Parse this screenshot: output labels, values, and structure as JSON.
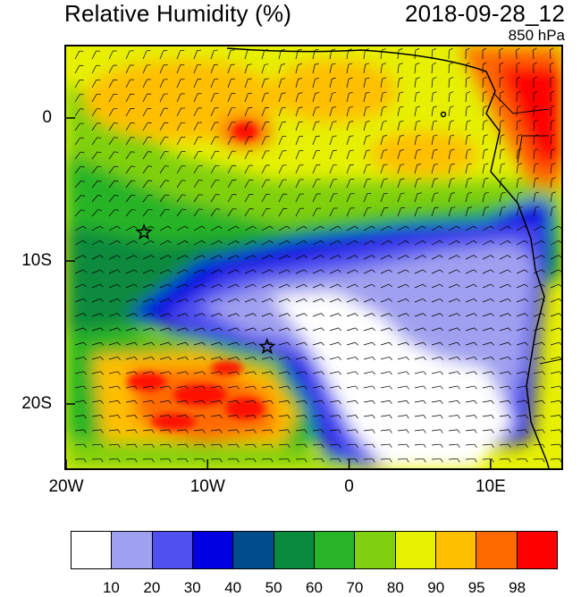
{
  "title_left": "Relative Humidity (%)",
  "title_right": "2018-09-28_12",
  "subtitle": "850 hPa",
  "map": {
    "lon_range": [
      -20,
      15
    ],
    "lat_range": [
      -24.5,
      5
    ],
    "x_ticks": [
      {
        "lon": -20,
        "label": "20W"
      },
      {
        "lon": -10,
        "label": "10W"
      },
      {
        "lon": 0,
        "label": "0"
      },
      {
        "lon": 10,
        "label": "10E"
      }
    ],
    "y_ticks": [
      {
        "lat": 0,
        "label": "0"
      },
      {
        "lat": -10,
        "label": "10S"
      },
      {
        "lat": -20,
        "label": "20S"
      }
    ],
    "stars": [
      {
        "lon": -14.5,
        "lat": -8
      },
      {
        "lon": -5.8,
        "lat": -16
      }
    ]
  },
  "colorbar": {
    "colors": [
      "#ffffff",
      "#a0a0f0",
      "#5050f0",
      "#0000e0",
      "#004c8c",
      "#0a8a3c",
      "#28b428",
      "#80d010",
      "#e6f000",
      "#ffbf00",
      "#ff6a00",
      "#ff0000"
    ],
    "labels": [
      "10",
      "20",
      "30",
      "40",
      "50",
      "60",
      "70",
      "80",
      "90",
      "95",
      "98"
    ]
  }
}
